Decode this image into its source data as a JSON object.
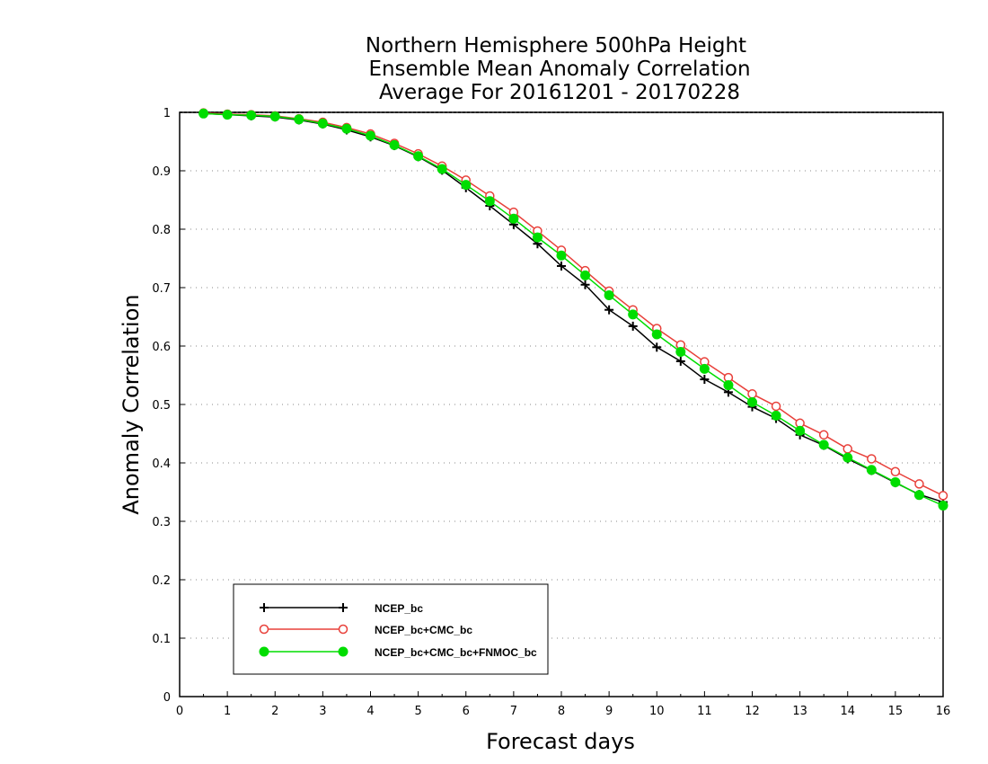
{
  "chart_data": {
    "type": "line",
    "title": [
      "Northern Hemisphere 500hPa Height",
      "Ensemble Mean Anomaly Correlation",
      "Average For 20161201 - 20170228"
    ],
    "xlabel": "Forecast days",
    "ylabel": "Anomaly Correlation",
    "xlim": [
      0,
      16
    ],
    "ylim": [
      0,
      1
    ],
    "xticks": [
      "0",
      "1",
      "2",
      "3",
      "4",
      "5",
      "6",
      "7",
      "8",
      "9",
      "10",
      "11",
      "12",
      "13",
      "14",
      "15",
      "16"
    ],
    "yticks": [
      "0",
      "0.1",
      "0.2",
      "0.3",
      "0.4",
      "0.5",
      "0.6",
      "0.7",
      "0.8",
      "0.9",
      "1"
    ],
    "grid": "horizontal dotted",
    "legend_position": "bottom-left",
    "x": [
      0.5,
      1,
      1.5,
      2,
      2.5,
      3,
      3.5,
      4,
      4.5,
      5,
      5.5,
      6,
      6.5,
      7,
      7.5,
      8,
      8.5,
      9,
      9.5,
      10,
      10.5,
      11,
      11.5,
      12,
      12.5,
      13,
      13.5,
      14,
      14.5,
      15,
      15.5,
      16
    ],
    "series": [
      {
        "name": "NCEP_bc",
        "color": "#000000",
        "marker": "plus",
        "values": [
          0.998,
          0.996,
          0.994,
          0.992,
          0.987,
          0.98,
          0.97,
          0.958,
          0.943,
          0.924,
          0.901,
          0.871,
          0.84,
          0.808,
          0.775,
          0.737,
          0.705,
          0.662,
          0.634,
          0.598,
          0.574,
          0.543,
          0.521,
          0.496,
          0.476,
          0.448,
          0.43,
          0.407,
          0.387,
          0.366,
          0.346,
          0.333
        ]
      },
      {
        "name": "NCEP_bc+CMC_bc",
        "color": "#e8403a",
        "marker": "open-circle",
        "values": [
          0.999,
          0.997,
          0.996,
          0.994,
          0.989,
          0.983,
          0.974,
          0.963,
          0.947,
          0.929,
          0.908,
          0.884,
          0.857,
          0.829,
          0.797,
          0.764,
          0.729,
          0.694,
          0.662,
          0.63,
          0.602,
          0.573,
          0.546,
          0.518,
          0.497,
          0.468,
          0.448,
          0.424,
          0.407,
          0.385,
          0.364,
          0.344
        ]
      },
      {
        "name": "NCEP_bc+CMC_bc+FNMOC_bc",
        "color": "#00dd00",
        "marker": "filled-circle",
        "values": [
          0.998,
          0.996,
          0.995,
          0.993,
          0.988,
          0.981,
          0.972,
          0.96,
          0.944,
          0.925,
          0.903,
          0.876,
          0.848,
          0.818,
          0.786,
          0.755,
          0.721,
          0.687,
          0.654,
          0.62,
          0.59,
          0.561,
          0.533,
          0.504,
          0.481,
          0.455,
          0.431,
          0.409,
          0.388,
          0.367,
          0.345,
          0.327
        ]
      }
    ]
  }
}
